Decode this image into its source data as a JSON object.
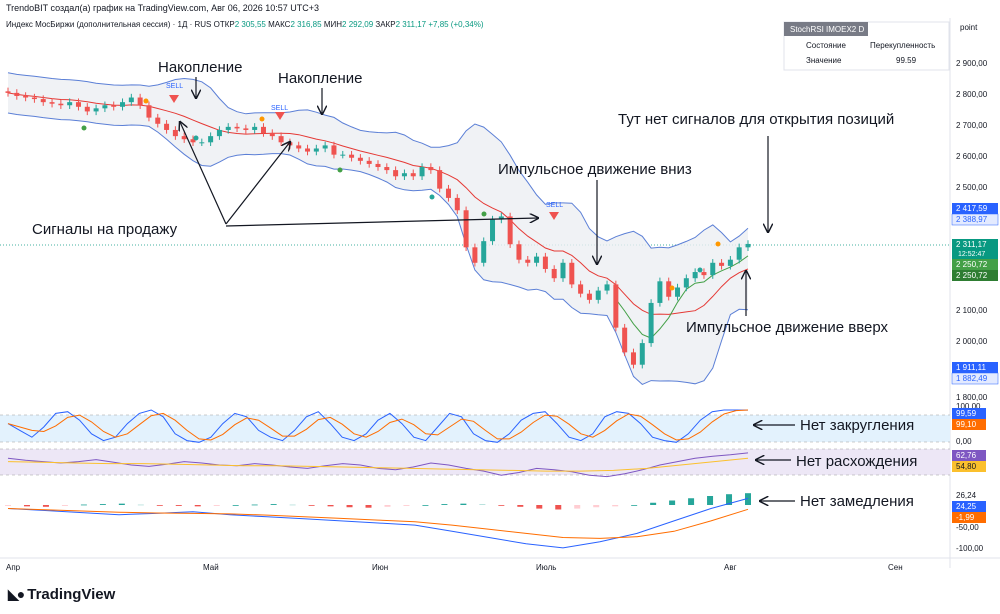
{
  "header": {
    "line1": "TrendoBIT создал(а) график на TradingView.com, Авг 06, 2026 10:57 UTC+3",
    "symbol": "Индекс МосБиржи (дополнительная сессия) · 1Д · RUS",
    "open_label": "ОТКР",
    "open": "2 305,55",
    "high_label": "МАКС",
    "high": "2 316,85",
    "low_label": "МИН",
    "low": "2 292,09",
    "close_label": "ЗАКР",
    "close": "2 311,17",
    "change": "+7,85 (+0,34%)"
  },
  "info_panel": {
    "title": "StochRSI IMOEX2 D",
    "row1_label": "Состояние",
    "row1_value": "Перекупленность",
    "row2_label": "Значение",
    "row2_value": "99.59"
  },
  "axis": {
    "unit_label": "point",
    "price_ticks": [
      "2 900,00",
      "2 800,00",
      "2 700,00",
      "2 600,00",
      "2 500,00",
      "2 100,00",
      "2 000,00",
      "1 800,00"
    ],
    "osc1_ticks": [
      "100,00",
      "0,00"
    ],
    "macd_ticks": [
      "-50,00",
      "-100,00"
    ],
    "x_ticks": [
      "Апр",
      "Май",
      "Июн",
      "Июль",
      "Авг",
      "Сен"
    ]
  },
  "price_labels": {
    "bb_upper": "2 417,59",
    "bb_basis": "2 388,97",
    "last": "2 311,17",
    "countdown": "12:52:47",
    "ma1": "2 250,72",
    "ma2": "2 250,72",
    "bb_lower1": "1 911,11",
    "bb_lower2": "1 882,49"
  },
  "osc_labels": {
    "stoch_k": "99,59",
    "stoch_d": "99,10",
    "rsi": "62,76",
    "rsi_ma": "54,80",
    "macd_hist": "26,24",
    "macd": "24,25",
    "macd_signal": "-1,99"
  },
  "annotations": {
    "accum1": "Накопление",
    "accum2": "Накопление",
    "sell_signals": "Сигналы на продажу",
    "impulse_down": "Импульсное движение вниз",
    "no_signals": "Тут нет сигналов для открытия позиций",
    "impulse_up": "Импульсное движение вверх",
    "no_rounding": "Нет закругления",
    "no_divergence": "Нет расхождения",
    "no_slowdown": "Нет замедления",
    "sell_tag": "SELL"
  },
  "logo_text": "TradingView",
  "colors": {
    "up": "#26a69a",
    "down": "#ef5350",
    "bb_line": "#5b7fd6",
    "basis": "#e53935",
    "ma": "#43a047",
    "sell_marker": "#ef5350",
    "osc_bg": "#e3f2fd",
    "rsi_bg": "#ede7f6"
  },
  "chart_data": {
    "type": "candlestick",
    "symbol": "IMOEX2",
    "timeframe": "1D",
    "x_months": [
      "Апр",
      "Май",
      "Июн",
      "Июль",
      "Авг",
      "Сен"
    ],
    "ylim": [
      1800,
      2950
    ],
    "close_series": [
      2800,
      2790,
      2785,
      2780,
      2770,
      2765,
      2760,
      2770,
      2755,
      2740,
      2750,
      2760,
      2755,
      2770,
      2785,
      2760,
      2720,
      2700,
      2680,
      2660,
      2650,
      2640,
      2640,
      2660,
      2680,
      2690,
      2685,
      2680,
      2690,
      2670,
      2660,
      2640,
      2630,
      2620,
      2610,
      2620,
      2630,
      2600,
      2600,
      2590,
      2580,
      2570,
      2560,
      2550,
      2530,
      2540,
      2530,
      2560,
      2550,
      2490,
      2460,
      2420,
      2300,
      2250,
      2320,
      2390,
      2400,
      2310,
      2260,
      2250,
      2270,
      2230,
      2200,
      2250,
      2180,
      2150,
      2130,
      2160,
      2180,
      2040,
      1960,
      1920,
      1990,
      2120,
      2190,
      2140,
      2170,
      2200,
      2220,
      2210,
      2250,
      2240,
      2260,
      2300,
      2311
    ],
    "stoch_rsi_k": [
      60,
      40,
      20,
      50,
      90,
      95,
      70,
      30,
      10,
      20,
      60,
      90,
      100,
      80,
      30,
      10,
      5,
      20,
      60,
      90,
      80,
      40,
      20,
      10,
      40,
      80,
      95,
      60,
      20,
      10,
      30,
      70,
      90,
      60,
      20,
      10,
      50,
      90,
      80,
      30,
      10,
      5,
      30,
      70,
      90,
      95,
      60,
      20,
      10,
      30,
      80,
      95,
      90,
      60,
      20,
      10,
      5,
      30,
      70,
      95,
      100,
      100,
      99.59
    ],
    "rsi": [
      55,
      52,
      50,
      48,
      50,
      53,
      49,
      45,
      43,
      46,
      50,
      48,
      45,
      44,
      47,
      45,
      42,
      40,
      44,
      47,
      45,
      40,
      38,
      42,
      48,
      45,
      40,
      36,
      30,
      34,
      40,
      38,
      35,
      30,
      28,
      32,
      38,
      45,
      50,
      55,
      58,
      60,
      62.76
    ],
    "rsi_ma": [
      50,
      49,
      48,
      47,
      47,
      46,
      45,
      44,
      44,
      43,
      42,
      41,
      40,
      39,
      38,
      37,
      36,
      36,
      37,
      40,
      45,
      50,
      54.8
    ],
    "macd_hist": [
      -2,
      -3,
      -4,
      -2,
      1,
      2,
      3,
      1,
      -1,
      -2,
      -3,
      -2,
      0,
      1,
      2,
      1,
      -1,
      -3,
      -5,
      -6,
      -4,
      -2,
      0,
      2,
      3,
      2,
      -1,
      -4,
      -8,
      -10,
      -8,
      -5,
      -3,
      0,
      5,
      10,
      15,
      20,
      24,
      26.24
    ],
    "macd": [
      0,
      -5,
      -10,
      -15,
      -12,
      -8,
      -15,
      -20,
      -25,
      -30,
      -35,
      -40,
      -55,
      -70,
      -85,
      -95,
      -80,
      -60,
      -30,
      0,
      24.25
    ],
    "macd_signal": [
      0,
      -3,
      -6,
      -9,
      -11,
      -12,
      -13,
      -16,
      -20,
      -24,
      -28,
      -32,
      -40,
      -50,
      -60,
      -70,
      -72,
      -68,
      -55,
      -30,
      -1.99
    ],
    "last_price": 2311.17,
    "bollinger_upper_last": 2417.59,
    "bollinger_basis_last": 2388.97,
    "bollinger_lower_last": 1911.11
  }
}
